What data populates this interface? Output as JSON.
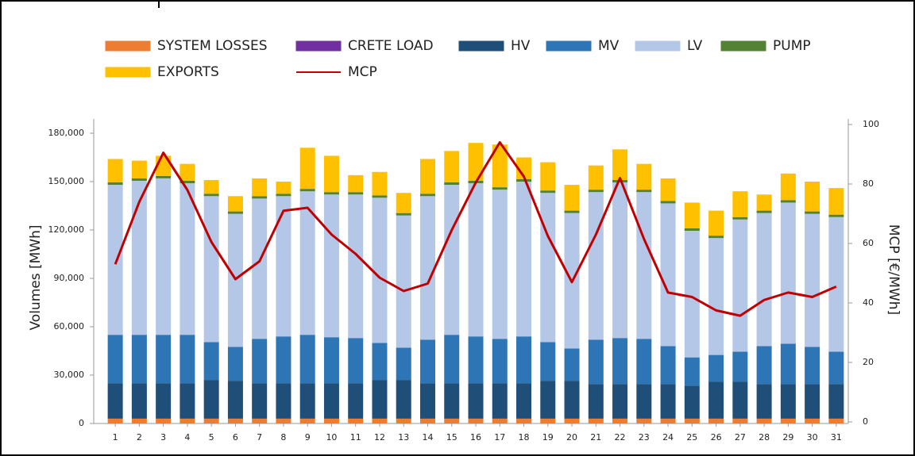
{
  "chart_data": {
    "type": "bar",
    "stacked": true,
    "categories": [
      "1",
      "2",
      "3",
      "4",
      "5",
      "6",
      "7",
      "8",
      "9",
      "10",
      "11",
      "12",
      "13",
      "14",
      "15",
      "16",
      "17",
      "18",
      "19",
      "20",
      "21",
      "22",
      "23",
      "24",
      "25",
      "26",
      "27",
      "28",
      "29",
      "30",
      "31"
    ],
    "series": [
      {
        "name": "SYSTEM LOSSES",
        "color": "#ed7d31",
        "values": [
          3000,
          3000,
          3000,
          3000,
          3000,
          3000,
          3000,
          3000,
          3000,
          3000,
          3000,
          3000,
          3000,
          3000,
          3000,
          3000,
          3000,
          3000,
          3000,
          3000,
          3000,
          3000,
          3000,
          3000,
          3000,
          3000,
          3000,
          3000,
          3000,
          3000,
          3000
        ]
      },
      {
        "name": "CRETE LOAD",
        "color": "#7030a0",
        "values": [
          0,
          0,
          0,
          0,
          0,
          0,
          0,
          0,
          0,
          0,
          0,
          0,
          0,
          0,
          0,
          0,
          0,
          0,
          0,
          0,
          0,
          0,
          0,
          0,
          0,
          0,
          0,
          0,
          0,
          0,
          0
        ]
      },
      {
        "name": "HV",
        "color": "#1f4e79",
        "values": [
          22000,
          22000,
          22000,
          22000,
          24000,
          23500,
          22000,
          22000,
          22000,
          22000,
          22000,
          24000,
          24000,
          22000,
          22000,
          22000,
          22000,
          22000,
          23500,
          23500,
          21500,
          21500,
          21500,
          21500,
          20500,
          23000,
          23000,
          21500,
          21500,
          21500,
          21500
        ]
      },
      {
        "name": "MV",
        "color": "#2e75b6",
        "values": [
          30000,
          30000,
          30000,
          30000,
          23500,
          21000,
          27500,
          29000,
          30000,
          28500,
          28000,
          23000,
          20000,
          27000,
          30000,
          29000,
          27500,
          29000,
          24000,
          20000,
          27500,
          28500,
          28000,
          23500,
          17500,
          16500,
          18500,
          23500,
          25000,
          23000,
          20000
        ]
      },
      {
        "name": "LV",
        "color": "#b4c7e7",
        "values": [
          93000,
          95500,
          97000,
          94000,
          90500,
          82500,
          87000,
          87000,
          89000,
          88500,
          89000,
          90000,
          82000,
          89000,
          93000,
          95000,
          92500,
          96000,
          92500,
          84000,
          91500,
          96500,
          91000,
          88500,
          78500,
          72500,
          82000,
          82500,
          87500,
          82500,
          83500
        ]
      },
      {
        "name": "PUMP",
        "color": "#548235",
        "values": [
          1500,
          1500,
          1500,
          1500,
          1500,
          1500,
          1500,
          1500,
          1500,
          1500,
          1500,
          1500,
          1500,
          1500,
          1500,
          1500,
          1500,
          1500,
          1500,
          1500,
          1500,
          1500,
          1500,
          1500,
          1500,
          1500,
          1500,
          1500,
          1500,
          1500,
          1500
        ]
      },
      {
        "name": "EXPORTS",
        "color": "#ffc000",
        "values": [
          14500,
          11000,
          12500,
          10500,
          8500,
          9500,
          11000,
          7500,
          25500,
          22500,
          10500,
          14500,
          12500,
          21500,
          19500,
          23500,
          26500,
          13500,
          17500,
          16000,
          15000,
          19000,
          16000,
          14000,
          16000,
          15500,
          16000,
          10000,
          16500,
          18500,
          16500
        ]
      },
      {
        "name": "MCP",
        "color": "#c00000",
        "type": "line",
        "axis": "y2",
        "values": [
          53,
          74,
          90.5,
          78,
          60.5,
          48,
          54,
          71,
          72,
          63,
          56.5,
          48.5,
          44,
          46.5,
          64.5,
          80.5,
          94,
          82.5,
          62.5,
          47,
          63,
          82,
          61.5,
          43.5,
          42,
          37.5,
          35.7,
          41,
          43.5,
          42,
          45.5
        ]
      }
    ],
    "ylabel": "Volumes [MWh]",
    "y2label": "MCP [€/MWh]",
    "ylim": [
      0,
      180000
    ],
    "yticks": [
      0,
      {
        "value": 30000,
        "label": "30,000"
      },
      {
        "value": 60000,
        "label": "60,000"
      },
      {
        "value": 90000,
        "label": "90,000"
      },
      {
        "value": 120000,
        "label": "120,000"
      },
      {
        "value": 150000,
        "label": "150,000"
      },
      {
        "value": 180000,
        "label": "180,000"
      }
    ],
    "y2lim": [
      0,
      100
    ],
    "y2ticks": [
      0,
      20,
      40,
      60,
      80,
      100
    ],
    "legend": "top"
  }
}
